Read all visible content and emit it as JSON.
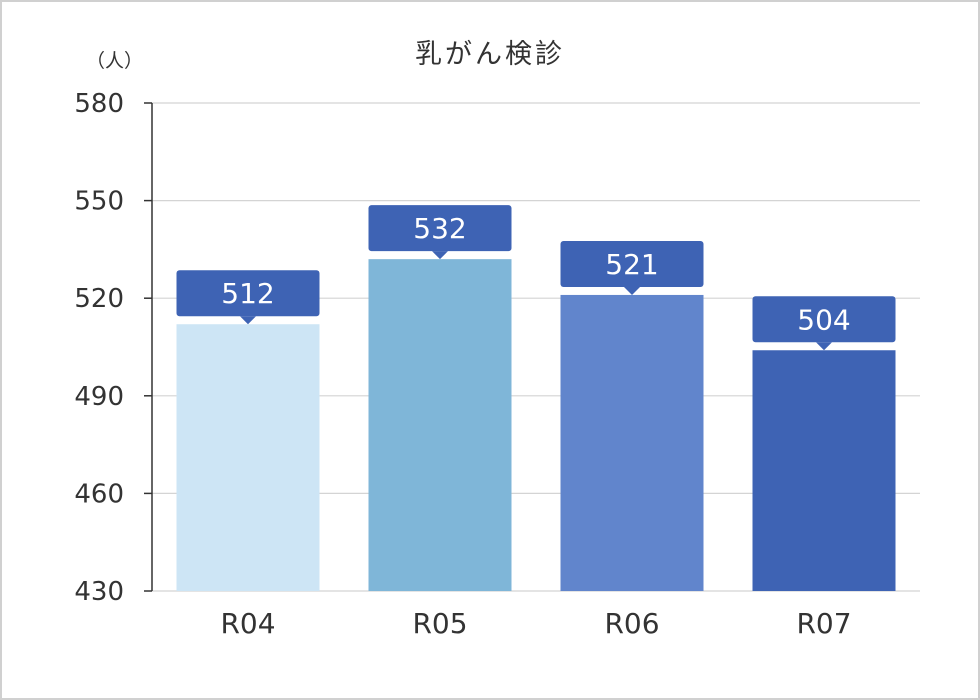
{
  "chart_data": {
    "type": "bar",
    "title": "乳がん検診",
    "unit": "（人）",
    "categories": [
      "R04",
      "R05",
      "R06",
      "R07"
    ],
    "values": [
      512,
      532,
      521,
      504
    ],
    "ylim": [
      430,
      580
    ],
    "yticks": [
      430,
      460,
      490,
      520,
      550,
      580
    ],
    "grid": true,
    "colors": [
      "#cde5f5",
      "#7fb6d8",
      "#6185cc",
      "#3e63b4"
    ],
    "label_color": "#3e63b4"
  }
}
